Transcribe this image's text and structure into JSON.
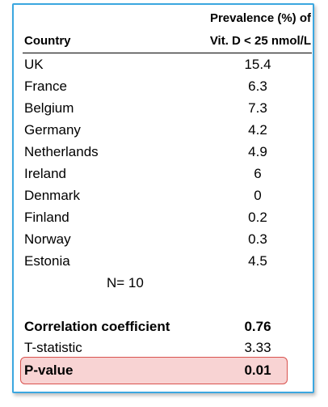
{
  "table": {
    "header": {
      "country_label": "Country",
      "prevalence_label_line1": "Prevalence (%) of",
      "prevalence_label_line2": "Vit. D < 25 nmol/L"
    },
    "rows": [
      {
        "country": "UK",
        "value": "15.4"
      },
      {
        "country": "France",
        "value": "6.3"
      },
      {
        "country": "Belgium",
        "value": "7.3"
      },
      {
        "country": "Germany",
        "value": "4.2"
      },
      {
        "country": "Netherlands",
        "value": "4.9"
      },
      {
        "country": "Ireland",
        "value": "6"
      },
      {
        "country": "Denmark",
        "value": "0"
      },
      {
        "country": "Finland",
        "value": "0.2"
      },
      {
        "country": "Norway",
        "value": "0.3"
      },
      {
        "country": "Estonia",
        "value": "4.5"
      }
    ],
    "n_label": "N= 10",
    "stats": {
      "correlation": {
        "label": "Correlation coefficient",
        "value": "0.76"
      },
      "t_statistic": {
        "label": "T-statistic",
        "value": "3.33"
      },
      "p_value": {
        "label": "P-value",
        "value": "0.01"
      }
    }
  },
  "colors": {
    "frame_border": "#3ba7e0",
    "highlight_fill": "#f8d3d3",
    "highlight_border": "#d9534f"
  }
}
